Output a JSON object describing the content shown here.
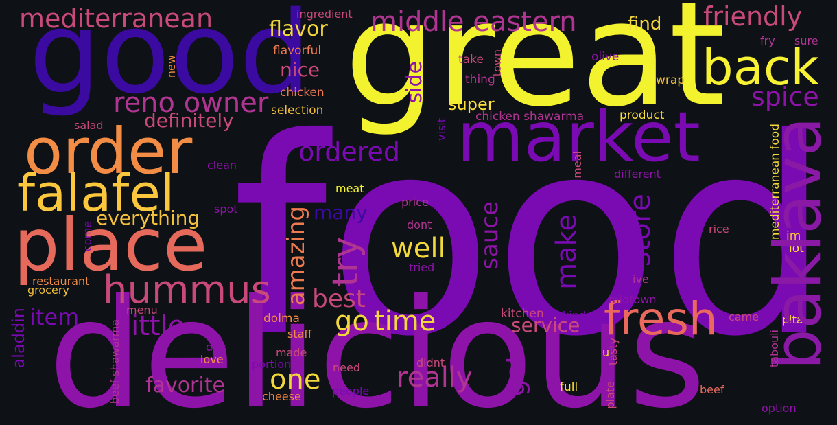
{
  "background": "#0e1116",
  "words": [
    {
      "text": "food",
      "color": "#7a0ab2"
    },
    {
      "text": "great",
      "color": "#f3f22e"
    },
    {
      "text": "delicious",
      "color": "#8e13a8"
    },
    {
      "text": "good",
      "color": "#3b0aa0"
    },
    {
      "text": "market",
      "color": "#7a0ab2"
    },
    {
      "text": "order",
      "color": "#f38c44"
    },
    {
      "text": "place",
      "color": "#e56a5b"
    },
    {
      "text": "baklava",
      "color": "#8a19a5"
    },
    {
      "text": "falafel",
      "color": "#fbc73c"
    },
    {
      "text": "fresh",
      "color": "#e9695d"
    },
    {
      "text": "back",
      "color": "#f8f234"
    },
    {
      "text": "hummus",
      "color": "#c94a7a"
    },
    {
      "text": "mediterranean",
      "color": "#c94a7a"
    },
    {
      "text": "middle eastern",
      "color": "#b03592"
    },
    {
      "text": "friendly",
      "color": "#c94a7a"
    },
    {
      "text": "reno owner",
      "color": "#b03592"
    },
    {
      "text": "ordered",
      "color": "#7a0ab2"
    },
    {
      "text": "spice",
      "color": "#8e13a8"
    },
    {
      "text": "try",
      "color": "#b03592"
    },
    {
      "text": "time",
      "color": "#f3d83b"
    },
    {
      "text": "go",
      "color": "#f3d83b"
    },
    {
      "text": "really",
      "color": "#b03592"
    },
    {
      "text": "little",
      "color": "#8e13a8"
    },
    {
      "text": "store",
      "color": "#7a0ab2"
    },
    {
      "text": "make",
      "color": "#7a0ab2"
    },
    {
      "text": "got",
      "color": "#8e13a8"
    },
    {
      "text": "one",
      "color": "#f3d83b"
    },
    {
      "text": "well",
      "color": "#f3d83b"
    },
    {
      "text": "best",
      "color": "#c94a7a"
    },
    {
      "text": "amazing",
      "color": "#ee7a4f"
    },
    {
      "text": "sauce",
      "color": "#8e13a8"
    },
    {
      "text": "service",
      "color": "#c94a7a"
    },
    {
      "text": "flavor",
      "color": "#f3d83b"
    },
    {
      "text": "find",
      "color": "#f3d83b"
    },
    {
      "text": "nice",
      "color": "#c94a7a"
    },
    {
      "text": "side",
      "color": "#8e13a8"
    },
    {
      "text": "everything",
      "color": "#f3c03b"
    },
    {
      "text": "definitely",
      "color": "#c94a7a"
    },
    {
      "text": "favorite",
      "color": "#b03592"
    },
    {
      "text": "item",
      "color": "#7a0ab2"
    },
    {
      "text": "super",
      "color": "#fbe03a"
    },
    {
      "text": "many",
      "color": "#3b0aa0"
    },
    {
      "text": "ingredient",
      "color": "#c94a7a"
    },
    {
      "text": "flavorful",
      "color": "#ee7a4f"
    },
    {
      "text": "chicken",
      "color": "#ee7a4f"
    },
    {
      "text": "selection",
      "color": "#f3c03b"
    },
    {
      "text": "take",
      "color": "#c94a7a"
    },
    {
      "text": "thing",
      "color": "#b03592"
    },
    {
      "text": "olive",
      "color": "#8e13a8"
    },
    {
      "text": "fry",
      "color": "#b03592"
    },
    {
      "text": "sure",
      "color": "#b03592"
    },
    {
      "text": "wrap",
      "color": "#f3c03b"
    },
    {
      "text": "chicken shawarma",
      "color": "#b03592"
    },
    {
      "text": "product",
      "color": "#fbe03a"
    },
    {
      "text": "salad",
      "color": "#c94a7a"
    },
    {
      "text": "clean",
      "color": "#8e13a8"
    },
    {
      "text": "meat",
      "color": "#f3f22e"
    },
    {
      "text": "spot",
      "color": "#8e13a8"
    },
    {
      "text": "price",
      "color": "#b03592"
    },
    {
      "text": "dont",
      "color": "#b03592"
    },
    {
      "text": "tried",
      "color": "#8e13a8"
    },
    {
      "text": "different",
      "color": "#8e13a8"
    },
    {
      "text": "rice",
      "color": "#c94a7a"
    },
    {
      "text": "im",
      "color": "#f3c03b"
    },
    {
      "text": "lot",
      "color": "#fbe03a"
    },
    {
      "text": "ive",
      "color": "#b03592"
    },
    {
      "text": "midtown",
      "color": "#8e13a8"
    },
    {
      "text": "restaurant",
      "color": "#f38c44"
    },
    {
      "text": "grocery",
      "color": "#f3c03b"
    },
    {
      "text": "menu",
      "color": "#c94a7a"
    },
    {
      "text": "dolma",
      "color": "#f38c44"
    },
    {
      "text": "staff",
      "color": "#f38c44"
    },
    {
      "text": "kitchen",
      "color": "#c94a7a"
    },
    {
      "text": "kind",
      "color": "#7a0ab2"
    },
    {
      "text": "came",
      "color": "#c94a7a"
    },
    {
      "text": "pita",
      "color": "#f3d83b"
    },
    {
      "text": "day",
      "color": "#8e13a8"
    },
    {
      "text": "made",
      "color": "#c94a7a"
    },
    {
      "text": "love",
      "color": "#f38c44"
    },
    {
      "text": "portion",
      "color": "#7a0ab2"
    },
    {
      "text": "need",
      "color": "#c94a7a"
    },
    {
      "text": "didnt",
      "color": "#c94a7a"
    },
    {
      "text": "people",
      "color": "#7a0ab2"
    },
    {
      "text": "cheese",
      "color": "#f38c44"
    },
    {
      "text": "full",
      "color": "#fbe03a"
    },
    {
      "text": "beef",
      "color": "#e9695d"
    },
    {
      "text": "option",
      "color": "#8e13a8"
    },
    {
      "text": "u",
      "color": "#f3d83b"
    },
    {
      "text": "new",
      "color": "#f38c44"
    },
    {
      "text": "town",
      "color": "#c94a7a"
    },
    {
      "text": "visit",
      "color": "#7a0ab2"
    },
    {
      "text": "meal",
      "color": "#c94a7a"
    },
    {
      "text": "come",
      "color": "#7a0ab2"
    },
    {
      "text": "aladdin",
      "color": "#7a0ab2"
    },
    {
      "text": "beef shawarma",
      "color": "#b03592"
    },
    {
      "text": "tasty",
      "color": "#c94a7a"
    },
    {
      "text": "plate",
      "color": "#c94a7a"
    },
    {
      "text": "tabouli",
      "color": "#b03592"
    },
    {
      "text": "mediterranean food",
      "color": "#f3d83b"
    }
  ]
}
